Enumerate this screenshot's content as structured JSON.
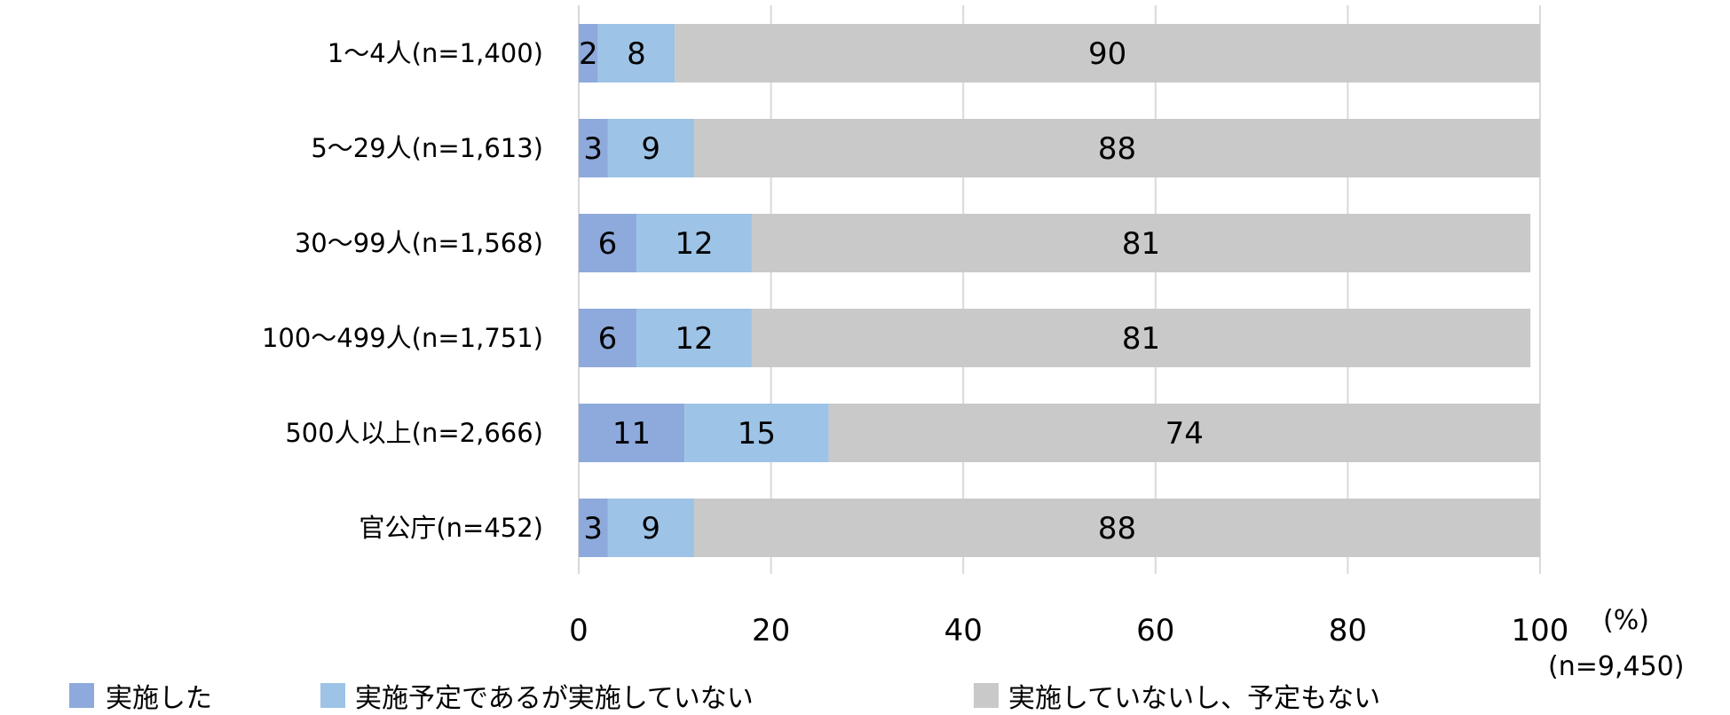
{
  "chart_data": {
    "type": "bar",
    "orientation": "horizontal",
    "stacked": true,
    "categories": [
      "1〜4人(n=1,400)",
      "5〜29人(n=1,613)",
      "30〜99人(n=1,568)",
      "100〜499人(n=1,751)",
      "500人以上(n=2,666)",
      "官公庁(n=452)"
    ],
    "series": [
      {
        "name": "実施した",
        "color": "#8EA9DB",
        "values": [
          2,
          3,
          6,
          6,
          11,
          3
        ]
      },
      {
        "name": "実施予定であるが実施していない",
        "color": "#9DC3E6",
        "values": [
          8,
          9,
          12,
          12,
          15,
          9
        ]
      },
      {
        "name": "実施していないし、予定もない",
        "color": "#C9C9C9",
        "values": [
          90,
          88,
          81,
          81,
          74,
          88
        ]
      }
    ],
    "xlim": [
      0,
      100
    ],
    "xticks": [
      "0",
      "20",
      "40",
      "60",
      "80",
      "100"
    ],
    "unit_label": "(%)",
    "total_n": "(n=9,450)",
    "grid": true,
    "legend_position": "bottom"
  }
}
